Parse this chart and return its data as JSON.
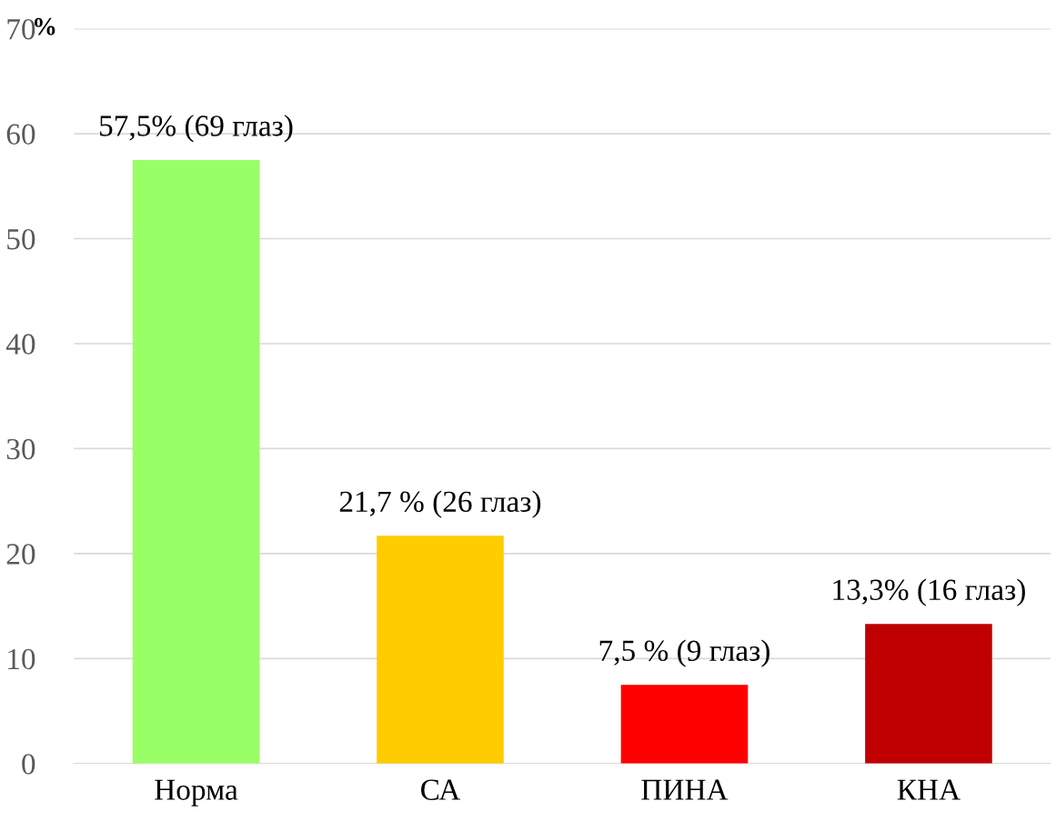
{
  "chart_data": {
    "type": "bar",
    "ylabel": "%",
    "categories": [
      "Норма",
      "СА",
      "ПИНА",
      "КНА"
    ],
    "values": [
      57.5,
      21.7,
      7.5,
      13.3
    ],
    "colors": [
      "#99ff66",
      "#ffcc00",
      "#ff0000",
      "#c00000"
    ],
    "value_labels": [
      "57,5% (69 глаз)",
      "21,7 % (26 глаз)",
      "7,5 % (9 глаз)",
      "13,3% (16 глаз)"
    ],
    "ylim": [
      0,
      70
    ],
    "yticks": [
      0,
      10,
      20,
      30,
      40,
      50,
      60,
      70
    ],
    "grid": "y"
  }
}
